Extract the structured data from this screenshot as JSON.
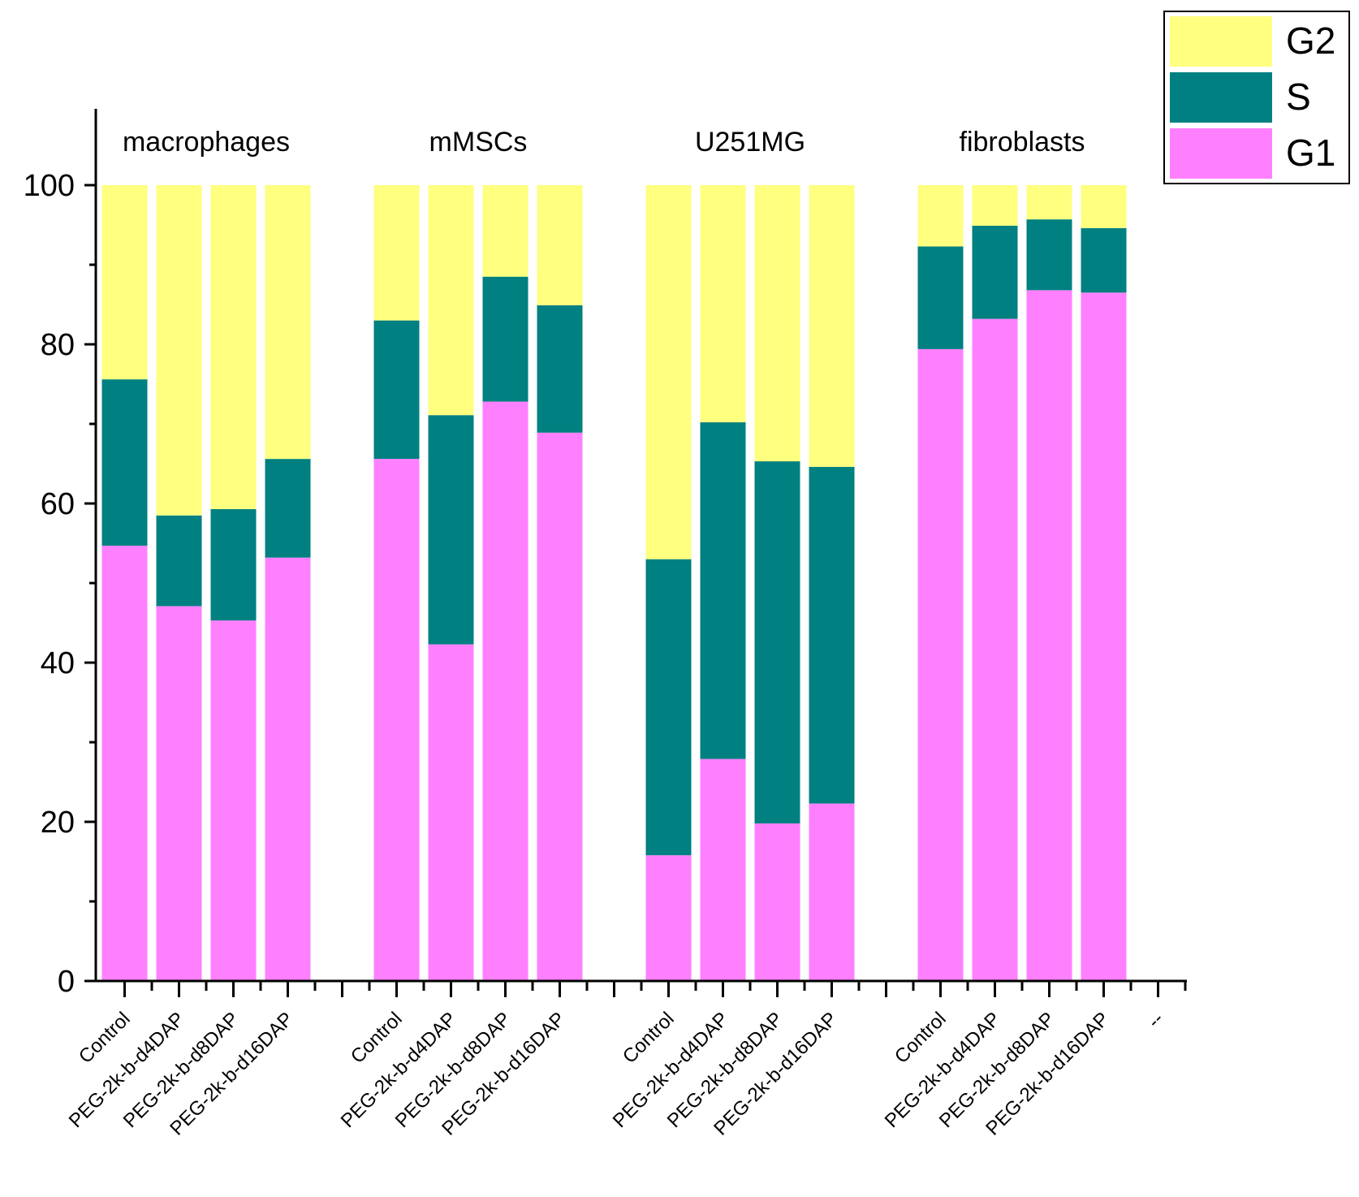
{
  "chart_data": {
    "type": "bar",
    "stacked": true,
    "title": "",
    "xlabel": "",
    "ylabel": "",
    "ylim": [
      0,
      110
    ],
    "y_ticks": [
      0,
      20,
      40,
      60,
      80,
      100
    ],
    "legend_position": "top-right",
    "groups": [
      {
        "name": "macrophages",
        "categories": [
          "Control",
          "PEG-2k-b-d4DAP",
          "PEG-2k-b-d8DAP",
          "PEG-2k-b-d16DAP"
        ]
      },
      {
        "name": "mMSCs",
        "categories": [
          "Control",
          "PEG-2k-b-d4DAP",
          "PEG-2k-b-d8DAP",
          "PEG-2k-b-d16DAP"
        ]
      },
      {
        "name": "U251MG",
        "categories": [
          "Control",
          "PEG-2k-b-d4DAP",
          "PEG-2k-b-d8DAP",
          "PEG-2k-b-d16DAP"
        ]
      },
      {
        "name": "fibroblasts",
        "categories": [
          "Control",
          "PEG-2k-b-d4DAP",
          "PEG-2k-b-d8DAP",
          "PEG-2k-b-d16DAP"
        ]
      }
    ],
    "trailing_category": "--",
    "series": [
      {
        "name": "G1",
        "color": "#ff80ff",
        "values": [
          54.7,
          47.1,
          45.3,
          53.2,
          65.6,
          42.3,
          72.8,
          68.9,
          15.8,
          27.9,
          19.8,
          22.3,
          79.4,
          83.2,
          86.8,
          86.5
        ]
      },
      {
        "name": "S",
        "color": "#008080",
        "values": [
          20.9,
          11.4,
          14.0,
          12.4,
          17.4,
          28.8,
          15.7,
          16.0,
          37.2,
          42.3,
          45.5,
          42.3,
          12.9,
          11.7,
          8.9,
          8.1
        ]
      },
      {
        "name": "G2",
        "color": "#ffff80",
        "values": [
          24.4,
          41.5,
          40.7,
          34.4,
          17.0,
          28.9,
          11.5,
          15.1,
          47.0,
          29.8,
          34.7,
          35.4,
          7.7,
          5.1,
          4.3,
          5.4
        ]
      }
    ],
    "legend_order": [
      "G2",
      "S",
      "G1"
    ]
  }
}
